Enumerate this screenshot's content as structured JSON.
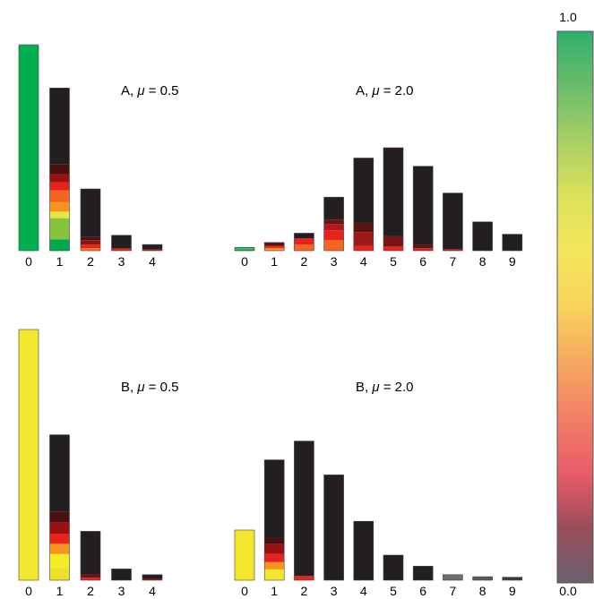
{
  "chart_data": [
    {
      "type": "bar",
      "panel": "A, mu = 0.5",
      "label_prefix": "A,",
      "mu_symbol": "μ",
      "label_value": "= 0.5",
      "categories": [
        "0",
        "1",
        "2",
        "3",
        "4"
      ],
      "values": [
        1.0,
        0.79,
        0.3,
        0.075,
        0.03
      ],
      "ylim": [
        0,
        1.0
      ],
      "segments": [
        [
          {
            "to": 1.0,
            "c": "#00b050"
          }
        ],
        [
          {
            "to": 0.07,
            "c": "#00a84e"
          },
          {
            "to": 0.2,
            "c": "#86c43e"
          },
          {
            "to": 0.24,
            "c": "#e6e645"
          },
          {
            "to": 0.3,
            "c": "#f7941d"
          },
          {
            "to": 0.37,
            "c": "#f26522"
          },
          {
            "to": 0.42,
            "c": "#e8231e"
          },
          {
            "to": 0.47,
            "c": "#9b1010"
          },
          {
            "to": 0.53,
            "c": "#4a1010"
          },
          {
            "to": 1.0,
            "c": "#231f20"
          }
        ],
        [
          {
            "to": 0.04,
            "c": "#f47c20"
          },
          {
            "to": 0.1,
            "c": "#e8231e"
          },
          {
            "to": 0.17,
            "c": "#8b1414"
          },
          {
            "to": 0.22,
            "c": "#4a1212"
          },
          {
            "to": 1.0,
            "c": "#231f20"
          }
        ],
        [
          {
            "to": 0.15,
            "c": "#e8231e"
          },
          {
            "to": 1.0,
            "c": "#231f20"
          }
        ],
        [
          {
            "to": 0.2,
            "c": "#c8201e"
          },
          {
            "to": 1.0,
            "c": "#231f20"
          }
        ]
      ]
    },
    {
      "type": "bar",
      "panel": "A, mu = 2.0",
      "label_prefix": "A,",
      "mu_symbol": "μ",
      "label_value": "= 2.0",
      "categories": [
        "0",
        "1",
        "2",
        "3",
        "4",
        "5",
        "6",
        "7",
        "8",
        "9"
      ],
      "values": [
        0.016,
        0.04,
        0.085,
        0.26,
        0.45,
        0.5,
        0.41,
        0.28,
        0.14,
        0.08
      ],
      "ylim": [
        0,
        1.0
      ],
      "segments": [
        [
          {
            "to": 0.5,
            "c": "#00b050"
          },
          {
            "to": 1.0,
            "c": "#4aba6a"
          }
        ],
        [
          {
            "to": 0.3,
            "c": "#f7941d"
          },
          {
            "to": 0.6,
            "c": "#e8231e"
          },
          {
            "to": 1.0,
            "c": "#5a1414"
          }
        ],
        [
          {
            "to": 0.35,
            "c": "#f26522"
          },
          {
            "to": 0.7,
            "c": "#e8231e"
          },
          {
            "to": 1.0,
            "c": "#231f20"
          }
        ],
        [
          {
            "to": 0.2,
            "c": "#f26522"
          },
          {
            "to": 0.38,
            "c": "#e8231e"
          },
          {
            "to": 0.5,
            "c": "#b01a1a"
          },
          {
            "to": 0.58,
            "c": "#6a1414"
          },
          {
            "to": 1.0,
            "c": "#231f20"
          }
        ],
        [
          {
            "to": 0.05,
            "c": "#e8231e"
          },
          {
            "to": 0.2,
            "c": "#a01818"
          },
          {
            "to": 0.3,
            "c": "#5a1414"
          },
          {
            "to": 1.0,
            "c": "#231f20"
          }
        ],
        [
          {
            "to": 0.04,
            "c": "#e8231e"
          },
          {
            "to": 0.14,
            "c": "#7a1414"
          },
          {
            "to": 1.0,
            "c": "#231f20"
          }
        ],
        [
          {
            "to": 0.03,
            "c": "#d81e1e"
          },
          {
            "to": 0.07,
            "c": "#5a1414"
          },
          {
            "to": 1.0,
            "c": "#231f20"
          }
        ],
        [
          {
            "to": 0.025,
            "c": "#c8201e"
          },
          {
            "to": 1.0,
            "c": "#231f20"
          }
        ],
        [
          {
            "to": 1.0,
            "c": "#231f20"
          }
        ],
        [
          {
            "to": 1.0,
            "c": "#231f20"
          }
        ]
      ]
    },
    {
      "type": "bar",
      "panel": "B, mu = 0.5",
      "label_prefix": "B,",
      "mu_symbol": "μ",
      "label_value": "= 0.5",
      "categories": [
        "0",
        "1",
        "2",
        "3",
        "4"
      ],
      "values": [
        1.0,
        0.58,
        0.195,
        0.045,
        0.022
      ],
      "ylim": [
        0,
        1.0
      ],
      "segments": [
        [
          {
            "to": 1.0,
            "c": "#f2e72c"
          }
        ],
        [
          {
            "to": 0.08,
            "c": "#eedf2e"
          },
          {
            "to": 0.18,
            "c": "#f5ec28"
          },
          {
            "to": 0.25,
            "c": "#f7941d"
          },
          {
            "to": 0.32,
            "c": "#e8231e"
          },
          {
            "to": 0.4,
            "c": "#9b1010"
          },
          {
            "to": 0.47,
            "c": "#4a1010"
          },
          {
            "to": 1.0,
            "c": "#231f20"
          }
        ],
        [
          {
            "to": 0.05,
            "c": "#e8231e"
          },
          {
            "to": 0.12,
            "c": "#6a1414"
          },
          {
            "to": 1.0,
            "c": "#231f20"
          }
        ],
        [
          {
            "to": 1.0,
            "c": "#231f20"
          }
        ],
        [
          {
            "to": 0.25,
            "c": "#8a1a1a"
          },
          {
            "to": 1.0,
            "c": "#231f20"
          }
        ]
      ]
    },
    {
      "type": "bar",
      "panel": "B, mu = 2.0",
      "label_prefix": "B,",
      "mu_symbol": "μ",
      "label_value": "= 2.0",
      "categories": [
        "0",
        "1",
        "2",
        "3",
        "4",
        "5",
        "6",
        "7",
        "8",
        "9"
      ],
      "values": [
        0.2,
        0.48,
        0.555,
        0.42,
        0.235,
        0.1,
        0.056,
        0.022,
        0.014,
        0.012
      ],
      "ylim": [
        0,
        1.0
      ],
      "segments": [
        [
          {
            "to": 1.0,
            "c": "#f2e72c"
          }
        ],
        [
          {
            "to": 0.09,
            "c": "#f2e72c"
          },
          {
            "to": 0.15,
            "c": "#f7941d"
          },
          {
            "to": 0.22,
            "c": "#e8231e"
          },
          {
            "to": 0.3,
            "c": "#9b1010"
          },
          {
            "to": 0.35,
            "c": "#4a1010"
          },
          {
            "to": 1.0,
            "c": "#231f20"
          }
        ],
        [
          {
            "to": 0.03,
            "c": "#e8231e"
          },
          {
            "to": 1.0,
            "c": "#231f20"
          }
        ],
        [
          {
            "to": 1.0,
            "c": "#231f20"
          }
        ],
        [
          {
            "to": 1.0,
            "c": "#231f20"
          }
        ],
        [
          {
            "to": 1.0,
            "c": "#231f20"
          }
        ],
        [
          {
            "to": 1.0,
            "c": "#231f20"
          }
        ],
        [
          {
            "to": 1.0,
            "c": "#6e6e6e"
          }
        ],
        [
          {
            "to": 1.0,
            "c": "#585858"
          }
        ],
        [
          {
            "to": 1.0,
            "c": "#3a3a3a"
          }
        ]
      ]
    }
  ],
  "colorbar": {
    "max_label": "1.0",
    "min_label": "0.0",
    "stops": [
      {
        "v": 1.0,
        "c": "#2eb06e"
      },
      {
        "v": 0.9,
        "c": "#6cbc6a"
      },
      {
        "v": 0.8,
        "c": "#a8d064"
      },
      {
        "v": 0.7,
        "c": "#dce25c"
      },
      {
        "v": 0.6,
        "c": "#f5e65a"
      },
      {
        "v": 0.5,
        "c": "#f9d35c"
      },
      {
        "v": 0.4,
        "c": "#f6a860"
      },
      {
        "v": 0.3,
        "c": "#f28066"
      },
      {
        "v": 0.2,
        "c": "#ea5c68"
      },
      {
        "v": 0.1,
        "c": "#9a4e5a"
      },
      {
        "v": 0.0,
        "c": "#6a6070"
      }
    ]
  }
}
